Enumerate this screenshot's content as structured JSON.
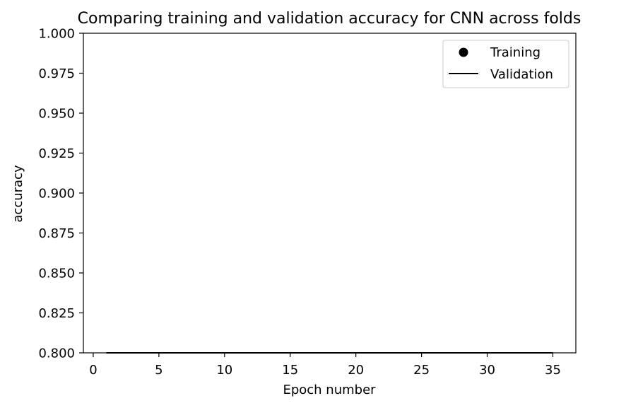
{
  "chart_data": {
    "type": "line",
    "title": "Comparing training and validation accuracy for CNN across folds",
    "xlabel": "Epoch number",
    "ylabel": "accuracy",
    "xlim": [
      -0.75,
      36.75
    ],
    "ylim": [
      0.8,
      1.0
    ],
    "xticks": [
      0,
      5,
      10,
      15,
      20,
      25,
      30,
      35
    ],
    "xtick_labels": [
      "0",
      "5",
      "10",
      "15",
      "20",
      "25",
      "30",
      "35"
    ],
    "yticks": [
      0.8,
      0.825,
      0.85,
      0.875,
      0.9,
      0.925,
      0.95,
      0.975,
      1.0
    ],
    "ytick_labels": [
      "0.800",
      "0.825",
      "0.850",
      "0.875",
      "0.900",
      "0.925",
      "0.950",
      "0.975",
      "1.000"
    ],
    "grid": false,
    "legend_position": "top-right",
    "series": [
      {
        "name": "Training",
        "style": "marker",
        "color": "#000000",
        "x": [],
        "y": []
      },
      {
        "name": "Validation",
        "style": "line",
        "color": "#000000",
        "x": [
          1,
          35
        ],
        "y": [
          0.8,
          0.8
        ]
      }
    ]
  }
}
